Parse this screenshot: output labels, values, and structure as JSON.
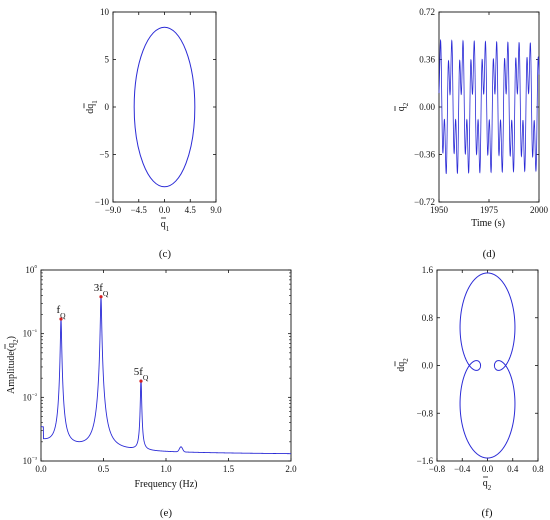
{
  "chart_data": [
    {
      "panel": "c",
      "caption": "(c)",
      "type": "line",
      "xlabel": "q̄1",
      "ylabel": "dq̄1",
      "xlim": [
        -9.0,
        9.0
      ],
      "ylim": [
        -10,
        10
      ],
      "xticks": [
        "−9.0",
        "−4.5",
        "0.0",
        "4.5",
        "9.0"
      ],
      "yticks": [
        "10",
        "5",
        "0",
        "−5",
        "−10"
      ],
      "series": [
        {
          "shape": "ellipse",
          "center": [
            0,
            0
          ],
          "radius_x": 5.3,
          "radius_y": 8.4
        }
      ],
      "color": "#2b2bd6"
    },
    {
      "panel": "d",
      "caption": "(d)",
      "type": "line",
      "xlabel": "Time (s)",
      "ylabel": "q̄2",
      "xlim": [
        1950,
        2000
      ],
      "ylim": [
        -0.72,
        0.72
      ],
      "xticks": [
        "1950",
        "1975",
        "2000"
      ],
      "yticks": [
        "0.72",
        "0.36",
        "0.00",
        "−0.36",
        "−0.72"
      ],
      "series": [
        {
          "description": "periodic signal",
          "components": [
            {
              "amplitude": 0.35,
              "period": 5.6
            },
            {
              "amplitude": 0.24,
              "period": 1.87
            }
          ]
        }
      ],
      "color": "#2b2bd6"
    },
    {
      "panel": "e",
      "caption": "(e)",
      "type": "line",
      "xlabel": "Frequency (Hz)",
      "ylabel": "Amplitude(q̄2)",
      "xlim": [
        0.0,
        2.0
      ],
      "ylim": [
        0.001,
        1
      ],
      "yscale": "log",
      "xticks": [
        "0.0",
        "0.5",
        "1.0",
        "1.5",
        "2.0"
      ],
      "yticks": [
        "10⁰",
        "10⁻¹",
        "10⁻²",
        "10⁻³"
      ],
      "peaks": [
        {
          "label": "fQ",
          "x": 0.16,
          "y": 0.17
        },
        {
          "label": "3fQ",
          "x": 0.48,
          "y": 0.38
        },
        {
          "label": "5fQ",
          "x": 0.8,
          "y": 0.018
        }
      ],
      "color": "#2b2bd6"
    },
    {
      "panel": "f",
      "caption": "(f)",
      "type": "line",
      "xlabel": "q̄2",
      "ylabel": "dq̄2",
      "xlim": [
        -0.8,
        0.8
      ],
      "ylim": [
        -1.6,
        1.6
      ],
      "xticks": [
        "−0.8",
        "−0.4",
        "0.0",
        "0.4",
        "0.8"
      ],
      "yticks": [
        "1.6",
        "0.8",
        "0.0",
        "−0.8",
        "−1.6"
      ],
      "series": [
        {
          "description": "closed multi-loop orbit",
          "components": [
            {
              "amplitude_x": 0.35,
              "amplitude_y": 1.05,
              "harmonic": 1
            },
            {
              "amplitude_x": 0.24,
              "amplitude_y": 0.5,
              "harmonic": 3
            }
          ]
        }
      ],
      "color": "#2b2bd6"
    }
  ]
}
